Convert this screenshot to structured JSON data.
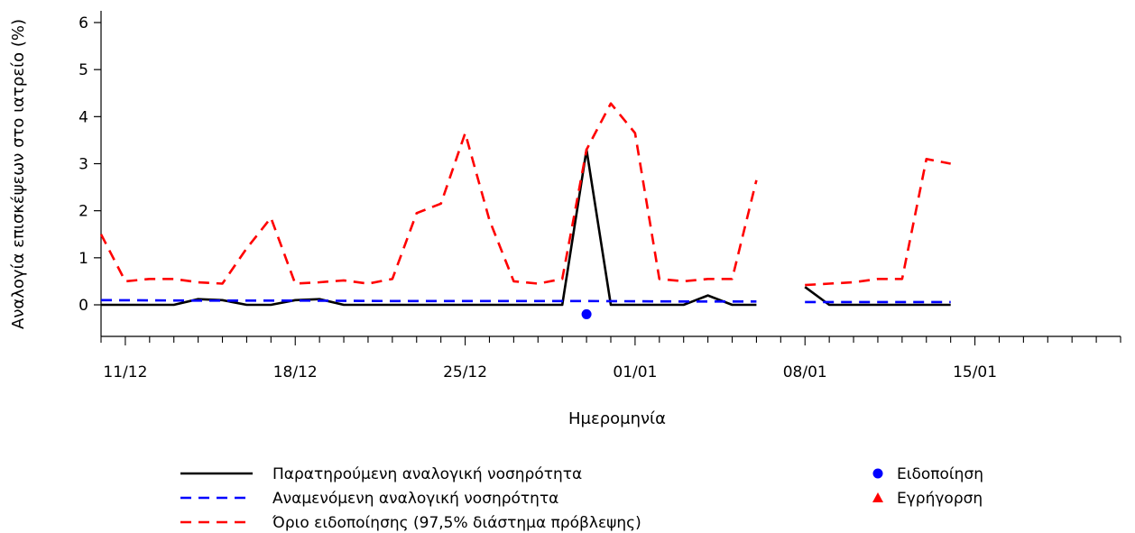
{
  "chart_data": {
    "type": "line",
    "title": "",
    "xlabel": "Ημερομηνία",
    "ylabel": "Αναλογία επισκέψεων στο ιατρείο (%)",
    "ylim": [
      0,
      6
    ],
    "yticks": [
      0,
      1,
      2,
      3,
      4,
      5,
      6
    ],
    "x_range": [
      "2022-12-10",
      "2023-01-21"
    ],
    "x_minor_ticks": "daily",
    "x_labeled_ticks": [
      {
        "date": "2022-12-11",
        "label": "11/12"
      },
      {
        "date": "2022-12-18",
        "label": "18/12"
      },
      {
        "date": "2022-12-25",
        "label": "25/12"
      },
      {
        "date": "2023-01-01",
        "label": "01/01"
      },
      {
        "date": "2023-01-08",
        "label": "08/01"
      },
      {
        "date": "2023-01-15",
        "label": "15/01"
      }
    ],
    "grid": false,
    "legend_position": "bottom",
    "series": [
      {
        "name": "Παρατηρούμενη αναλογική νοσηρότητα",
        "color": "#000000",
        "style": "solid",
        "points": [
          [
            "2022-12-10",
            0
          ],
          [
            "2022-12-11",
            0
          ],
          [
            "2022-12-12",
            0
          ],
          [
            "2022-12-13",
            0
          ],
          [
            "2022-12-14",
            0.12
          ],
          [
            "2022-12-15",
            0.1
          ],
          [
            "2022-12-16",
            0
          ],
          [
            "2022-12-17",
            0
          ],
          [
            "2022-12-18",
            0.1
          ],
          [
            "2022-12-19",
            0.12
          ],
          [
            "2022-12-20",
            0
          ],
          [
            "2022-12-21",
            0
          ],
          [
            "2022-12-22",
            0
          ],
          [
            "2022-12-23",
            0
          ],
          [
            "2022-12-24",
            0
          ],
          [
            "2022-12-25",
            0
          ],
          [
            "2022-12-26",
            0
          ],
          [
            "2022-12-27",
            0
          ],
          [
            "2022-12-28",
            0
          ],
          [
            "2022-12-29",
            0
          ],
          [
            "2022-12-30",
            3.3
          ],
          [
            "2022-12-31",
            0
          ],
          [
            "2023-01-01",
            0
          ],
          [
            "2023-01-02",
            0
          ],
          [
            "2023-01-03",
            0
          ],
          [
            "2023-01-04",
            0.2
          ],
          [
            "2023-01-05",
            0
          ],
          [
            "2023-01-06",
            0
          ],
          null,
          [
            "2023-01-08",
            0.38
          ],
          [
            "2023-01-09",
            0
          ],
          [
            "2023-01-10",
            0
          ],
          [
            "2023-01-11",
            0
          ],
          [
            "2023-01-12",
            0
          ],
          [
            "2023-01-13",
            0
          ],
          [
            "2023-01-14",
            0
          ]
        ]
      },
      {
        "name": "Αναμενόμενη αναλογική νοσηρότητα",
        "color": "#0000ff",
        "style": "dashed",
        "points": [
          [
            "2022-12-10",
            0.1
          ],
          [
            "2022-12-14",
            0.09
          ],
          [
            "2022-12-18",
            0.09
          ],
          [
            "2022-12-22",
            0.08
          ],
          [
            "2022-12-26",
            0.08
          ],
          [
            "2022-12-30",
            0.08
          ],
          [
            "2023-01-03",
            0.07
          ],
          [
            "2023-01-06",
            0.07
          ],
          null,
          [
            "2023-01-08",
            0.06
          ],
          [
            "2023-01-11",
            0.06
          ],
          [
            "2023-01-14",
            0.06
          ]
        ]
      },
      {
        "name": "Όριο ειδοποίησης (97,5% διάστημα πρόβλεψης)",
        "color": "#ff0000",
        "style": "dashed",
        "points": [
          [
            "2022-12-10",
            1.5
          ],
          [
            "2022-12-11",
            0.5
          ],
          [
            "2022-12-12",
            0.55
          ],
          [
            "2022-12-13",
            0.55
          ],
          [
            "2022-12-14",
            0.48
          ],
          [
            "2022-12-15",
            0.45
          ],
          [
            "2022-12-16",
            1.2
          ],
          [
            "2022-12-17",
            1.85
          ],
          [
            "2022-12-18",
            0.45
          ],
          [
            "2022-12-19",
            0.48
          ],
          [
            "2022-12-20",
            0.52
          ],
          [
            "2022-12-21",
            0.45
          ],
          [
            "2022-12-22",
            0.55
          ],
          [
            "2022-12-23",
            1.95
          ],
          [
            "2022-12-24",
            2.15
          ],
          [
            "2022-12-25",
            3.65
          ],
          [
            "2022-12-26",
            1.8
          ],
          [
            "2022-12-27",
            0.5
          ],
          [
            "2022-12-28",
            0.45
          ],
          [
            "2022-12-29",
            0.55
          ],
          [
            "2022-12-30",
            3.3
          ],
          [
            "2022-12-31",
            4.28
          ],
          [
            "2023-01-01",
            3.65
          ],
          [
            "2023-01-02",
            0.55
          ],
          [
            "2023-01-03",
            0.5
          ],
          [
            "2023-01-04",
            0.55
          ],
          [
            "2023-01-05",
            0.55
          ],
          [
            "2023-01-06",
            2.65
          ],
          null,
          [
            "2023-01-08",
            0.42
          ],
          [
            "2023-01-09",
            0.45
          ],
          [
            "2023-01-10",
            0.48
          ],
          [
            "2023-01-11",
            0.55
          ],
          [
            "2023-01-12",
            0.55
          ],
          [
            "2023-01-13",
            3.1
          ],
          [
            "2023-01-14",
            3.0
          ]
        ]
      }
    ],
    "markers": [
      {
        "name": "Ειδοποίηση",
        "color": "#0000ff",
        "shape": "circle",
        "points": [
          [
            "2022-12-30",
            -0.2
          ]
        ]
      },
      {
        "name": "Εγρήγορση",
        "color": "#ff0000",
        "shape": "triangle",
        "points": []
      }
    ]
  }
}
